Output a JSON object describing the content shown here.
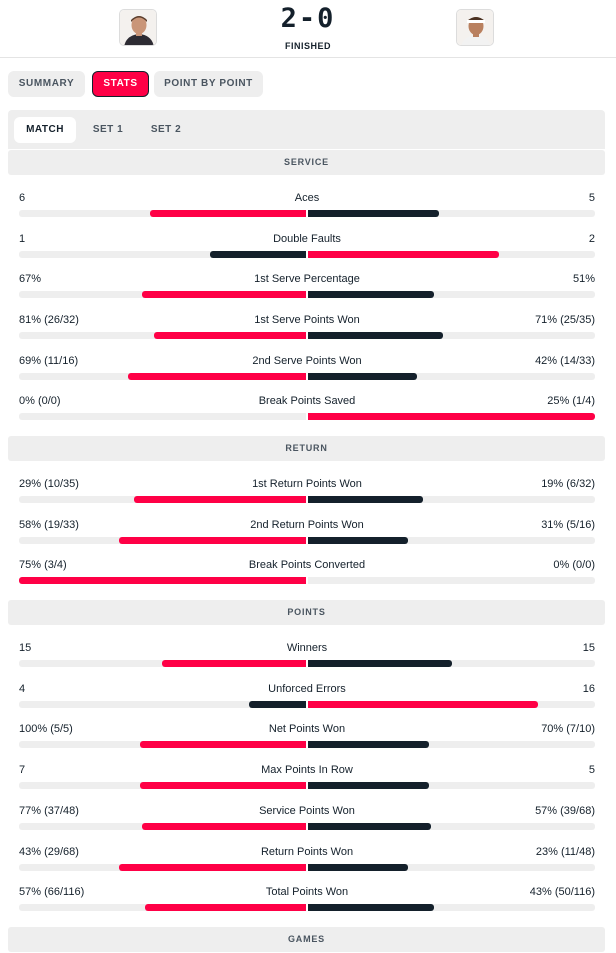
{
  "header": {
    "score": "2-0",
    "status": "FINISHED",
    "home_avatar_icon": "player-portrait-icon",
    "away_avatar_icon": "player-portrait-icon"
  },
  "tabs": [
    "SUMMARY",
    "STATS",
    "POINT BY POINT"
  ],
  "active_tab": "STATS",
  "subtabs": [
    "MATCH",
    "SET 1",
    "SET 2"
  ],
  "active_subtab": "MATCH",
  "colors": {
    "winner": "#ff0046",
    "loser": "#14202b",
    "track": "#eeeeee",
    "accent": "#ff0046"
  },
  "sections": [
    {
      "title": "SERVICE",
      "stats": [
        {
          "name": "Aces",
          "home": "6",
          "away": "5",
          "home_share": 0.545,
          "away_share": 0.455
        },
        {
          "name": "Double Faults",
          "home": "1",
          "away": "2",
          "home_share": 0.333,
          "away_share": 0.667
        },
        {
          "name": "1st Serve Percentage",
          "home": "67%",
          "away": "51%",
          "home_share": 0.57,
          "away_share": 0.44
        },
        {
          "name": "1st Serve Points Won",
          "home": "81% (26/32)",
          "away": "71% (25/35)",
          "home_share": 0.53,
          "away_share": 0.47
        },
        {
          "name": "2nd Serve Points Won",
          "home": "69% (11/16)",
          "away": "42% (14/33)",
          "home_share": 0.62,
          "away_share": 0.38
        },
        {
          "name": "Break Points Saved",
          "home": "0% (0/0)",
          "away": "25% (1/4)",
          "home_share": 0.0,
          "away_share": 1.0
        }
      ]
    },
    {
      "title": "RETURN",
      "stats": [
        {
          "name": "1st Return Points Won",
          "home": "29% (10/35)",
          "away": "19% (6/32)",
          "home_share": 0.6,
          "away_share": 0.4
        },
        {
          "name": "2nd Return Points Won",
          "home": "58% (19/33)",
          "away": "31% (5/16)",
          "home_share": 0.65,
          "away_share": 0.35
        },
        {
          "name": "Break Points Converted",
          "home": "75% (3/4)",
          "away": "0% (0/0)",
          "home_share": 1.0,
          "away_share": 0.0
        }
      ]
    },
    {
      "title": "POINTS",
      "stats": [
        {
          "name": "Winners",
          "home": "15",
          "away": "15",
          "home_share": 0.5,
          "away_share": 0.5
        },
        {
          "name": "Unforced Errors",
          "home": "4",
          "away": "16",
          "home_share": 0.2,
          "away_share": 0.8
        },
        {
          "name": "Net Points Won",
          "home": "100% (5/5)",
          "away": "70% (7/10)",
          "home_share": 0.58,
          "away_share": 0.42
        },
        {
          "name": "Max Points In Row",
          "home": "7",
          "away": "5",
          "home_share": 0.58,
          "away_share": 0.42
        },
        {
          "name": "Service Points Won",
          "home": "77% (37/48)",
          "away": "57% (39/68)",
          "home_share": 0.57,
          "away_share": 0.43
        },
        {
          "name": "Return Points Won",
          "home": "43% (29/68)",
          "away": "23% (11/48)",
          "home_share": 0.65,
          "away_share": 0.35
        },
        {
          "name": "Total Points Won",
          "home": "57% (66/116)",
          "away": "43% (50/116)",
          "home_share": 0.56,
          "away_share": 0.44
        }
      ]
    },
    {
      "title": "GAMES",
      "stats": []
    }
  ]
}
